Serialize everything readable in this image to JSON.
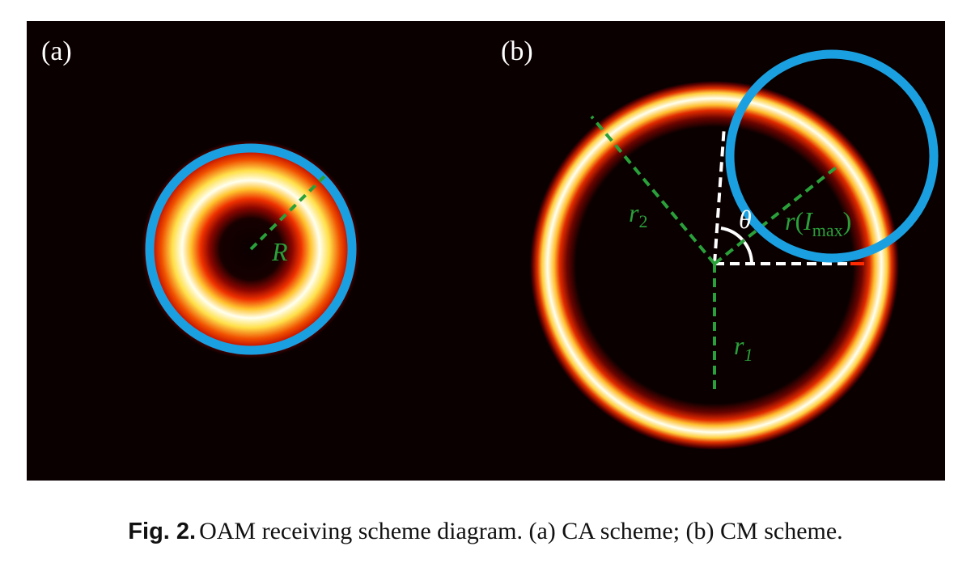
{
  "figure": {
    "panel_a_label": "(a)",
    "panel_b_label": "(b)",
    "labels": {
      "R": "R",
      "r2_main": "r",
      "r2_sub": "2",
      "theta": "θ",
      "rI_r": "r",
      "rI_open": "(",
      "rI_I": "I",
      "rI_sub": "max",
      "rI_close": ")",
      "r1_main": "r",
      "r1_sub": "1"
    },
    "colors": {
      "background": "#0b0000",
      "receiver_circle": "#1aa0e0",
      "radius_dash": "#2aa03a",
      "reference_dash": "#ffffff",
      "ring_core": "#fffff2",
      "ring_yellow": "#ffe24a",
      "ring_red": "#d90f00"
    }
  },
  "caption": {
    "number": "Fig. 2.",
    "text": "OAM receiving scheme diagram. (a) CA scheme; (b) CM scheme."
  }
}
